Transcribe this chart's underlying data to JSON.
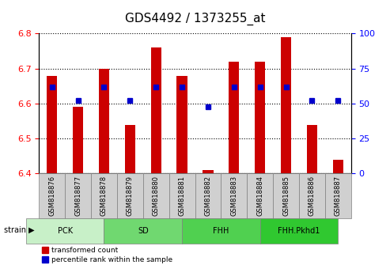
{
  "title": "GDS4492 / 1373255_at",
  "samples": [
    "GSM818876",
    "GSM818877",
    "GSM818878",
    "GSM818879",
    "GSM818880",
    "GSM818881",
    "GSM818882",
    "GSM818883",
    "GSM818884",
    "GSM818885",
    "GSM818886",
    "GSM818887"
  ],
  "transformed_count": [
    6.68,
    6.59,
    6.7,
    6.54,
    6.76,
    6.68,
    6.41,
    6.72,
    6.72,
    6.79,
    6.54,
    6.44
  ],
  "percentile_rank": [
    62,
    52,
    62,
    52,
    62,
    62,
    48,
    62,
    62,
    62,
    52,
    52
  ],
  "groups": [
    {
      "label": "PCK",
      "start": 0,
      "end": 2,
      "color": "#c8f0c8"
    },
    {
      "label": "SD",
      "start": 3,
      "end": 5,
      "color": "#70d870"
    },
    {
      "label": "FHH",
      "start": 6,
      "end": 8,
      "color": "#50d050"
    },
    {
      "label": "FHH.Pkhd1",
      "start": 9,
      "end": 11,
      "color": "#30c830"
    }
  ],
  "ylim_left": [
    6.4,
    6.8
  ],
  "ylim_right": [
    0,
    100
  ],
  "bar_color": "#cc0000",
  "dot_color": "#0000cc",
  "bar_width": 0.4,
  "grid_color": "#000000",
  "background_plot": "#ffffff",
  "background_sample": "#d0d0d0",
  "title_fontsize": 11,
  "tick_fontsize": 8,
  "label_fontsize": 8
}
